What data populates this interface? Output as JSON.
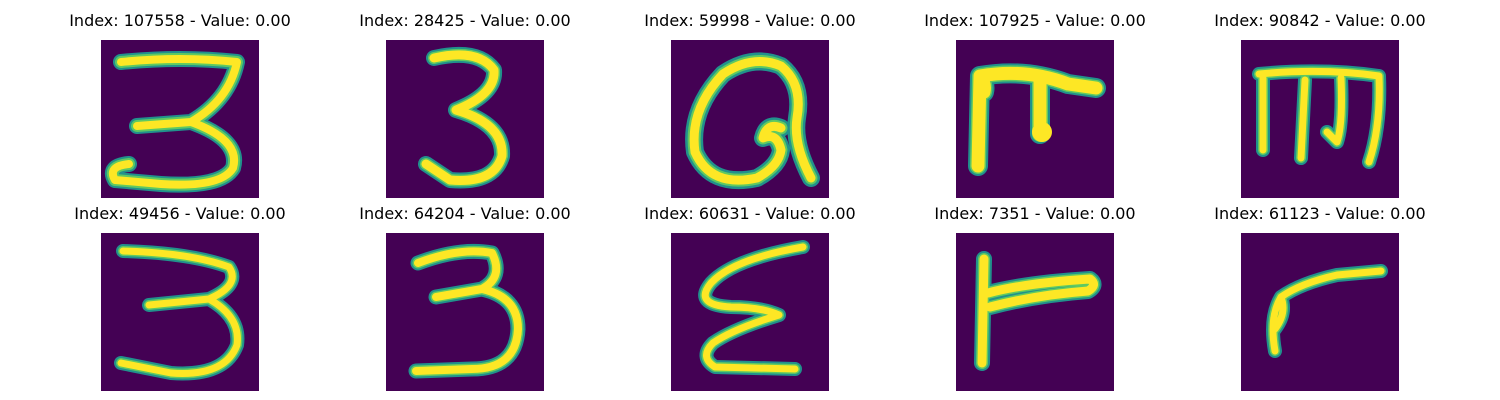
{
  "colors": {
    "background": "#440154",
    "stroke_core": "#fde725",
    "stroke_mid": "#5ec962",
    "stroke_edge": "#21918c"
  },
  "panels": [
    {
      "title": "Index: 107558 - Value: 0.00",
      "glyph": "3"
    },
    {
      "title": "Index: 28425 - Value: 0.00",
      "glyph": "3"
    },
    {
      "title": "Index: 59998 - Value: 0.00",
      "glyph": "a"
    },
    {
      "title": "Index: 107925 - Value: 0.00",
      "glyph": "script-f"
    },
    {
      "title": "Index: 90842 - Value: 0.00",
      "glyph": "script-m"
    },
    {
      "title": "Index: 49456 - Value: 0.00",
      "glyph": "3"
    },
    {
      "title": "Index: 64204 - Value: 0.00",
      "glyph": "3"
    },
    {
      "title": "Index: 60631 - Value: 0.00",
      "glyph": "epsilon"
    },
    {
      "title": "Index: 7351 - Value: 0.00",
      "glyph": "r"
    },
    {
      "title": "Index: 61123 - Value: 0.00",
      "glyph": "r"
    }
  ]
}
